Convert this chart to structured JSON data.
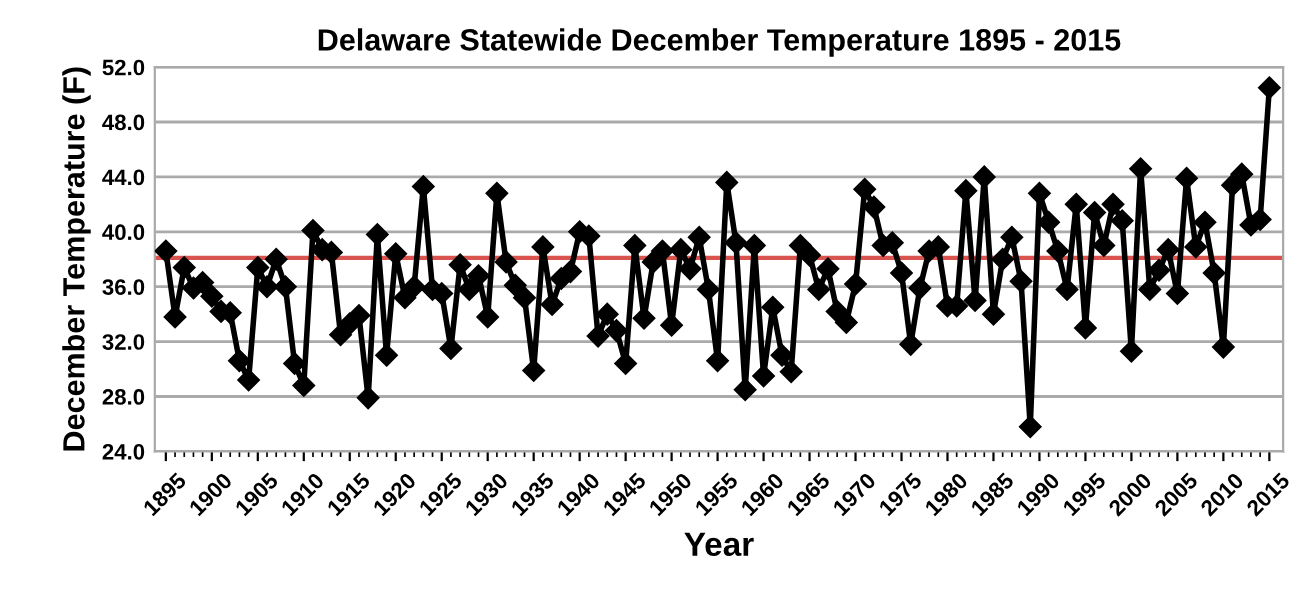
{
  "chart_data": {
    "type": "line",
    "title": "Delaware Statewide December Temperature 1895 - 2015",
    "xlabel": "Year",
    "ylabel": "December Temperature (F)",
    "x": [
      1895,
      1896,
      1897,
      1898,
      1899,
      1900,
      1901,
      1902,
      1903,
      1904,
      1905,
      1906,
      1907,
      1908,
      1909,
      1910,
      1911,
      1912,
      1913,
      1914,
      1915,
      1916,
      1917,
      1918,
      1919,
      1920,
      1921,
      1922,
      1923,
      1924,
      1925,
      1926,
      1927,
      1928,
      1929,
      1930,
      1931,
      1932,
      1933,
      1934,
      1935,
      1936,
      1937,
      1938,
      1939,
      1940,
      1941,
      1942,
      1943,
      1944,
      1945,
      1946,
      1947,
      1948,
      1949,
      1950,
      1951,
      1952,
      1953,
      1954,
      1955,
      1956,
      1957,
      1958,
      1959,
      1960,
      1961,
      1962,
      1963,
      1964,
      1965,
      1966,
      1967,
      1968,
      1969,
      1970,
      1971,
      1972,
      1973,
      1974,
      1975,
      1976,
      1977,
      1978,
      1979,
      1980,
      1981,
      1982,
      1983,
      1984,
      1985,
      1986,
      1987,
      1988,
      1989,
      1990,
      1991,
      1992,
      1993,
      1994,
      1995,
      1996,
      1997,
      1998,
      1999,
      2000,
      2001,
      2002,
      2003,
      2004,
      2005,
      2006,
      2007,
      2008,
      2009,
      2010,
      2011,
      2012,
      2013,
      2014,
      2015
    ],
    "series": [
      {
        "color": "#000000",
        "values": [
          38.6,
          33.8,
          37.4,
          35.9,
          36.3,
          35.3,
          34.2,
          34.1,
          30.6,
          29.2,
          37.4,
          36.0,
          38.0,
          36.0,
          30.4,
          28.8,
          40.1,
          38.7,
          38.5,
          32.5,
          33.3,
          33.9,
          27.9,
          39.8,
          31.0,
          38.4,
          35.2,
          36.0,
          43.3,
          35.8,
          35.5,
          31.5,
          37.6,
          35.8,
          36.8,
          33.8,
          42.8,
          37.8,
          36.1,
          35.2,
          29.9,
          38.9,
          34.7,
          36.6,
          37.1,
          40.0,
          39.7,
          32.4,
          34.0,
          32.8,
          30.4,
          39.0,
          33.7,
          37.8,
          38.6,
          33.2,
          38.7,
          37.3,
          39.6,
          35.8,
          30.6,
          43.6,
          39.2,
          28.5,
          39.0,
          29.5,
          34.5,
          31.0,
          29.8,
          39.0,
          38.3,
          35.8,
          37.3,
          34.2,
          33.4,
          36.2,
          43.1,
          41.8,
          39.0,
          39.2,
          37.0,
          31.8,
          35.9,
          38.6,
          38.9,
          34.6,
          34.6,
          43.0,
          35.0,
          44.0,
          34.0,
          38.0,
          39.6,
          36.4,
          25.8,
          42.8,
          40.7,
          38.6,
          35.8,
          42.0,
          33.0,
          41.4,
          39.0,
          42.0,
          40.8,
          31.3,
          44.6,
          35.8,
          37.2,
          38.7,
          35.5,
          43.9,
          38.9,
          40.7,
          37.0,
          31.6,
          43.4,
          44.2,
          40.5,
          40.9,
          50.5
        ]
      }
    ],
    "ref_lines": [
      {
        "axis": "y",
        "value": 38.1,
        "color": "#d9534f"
      }
    ],
    "xlim": [
      1893.8,
      2016.5
    ],
    "xticks": [
      1895,
      1900,
      1905,
      1910,
      1915,
      1920,
      1925,
      1930,
      1935,
      1940,
      1945,
      1950,
      1955,
      1960,
      1965,
      1970,
      1975,
      1980,
      1985,
      1990,
      1995,
      2000,
      2005,
      2010,
      2015
    ],
    "ylim": [
      24,
      52
    ],
    "yticks": [
      {
        "value": 24,
        "label": "24.0"
      },
      {
        "value": 28,
        "label": "28.0"
      },
      {
        "value": 32,
        "label": "32.0"
      },
      {
        "value": 36,
        "label": "36.0"
      },
      {
        "value": 40,
        "label": "40.0"
      },
      {
        "value": 44,
        "label": "44.0"
      },
      {
        "value": 48,
        "label": "48.0"
      },
      {
        "value": 52,
        "label": "52.0"
      }
    ],
    "grid": "y",
    "legend": false,
    "marker": "diamond",
    "line_style": "solid"
  }
}
